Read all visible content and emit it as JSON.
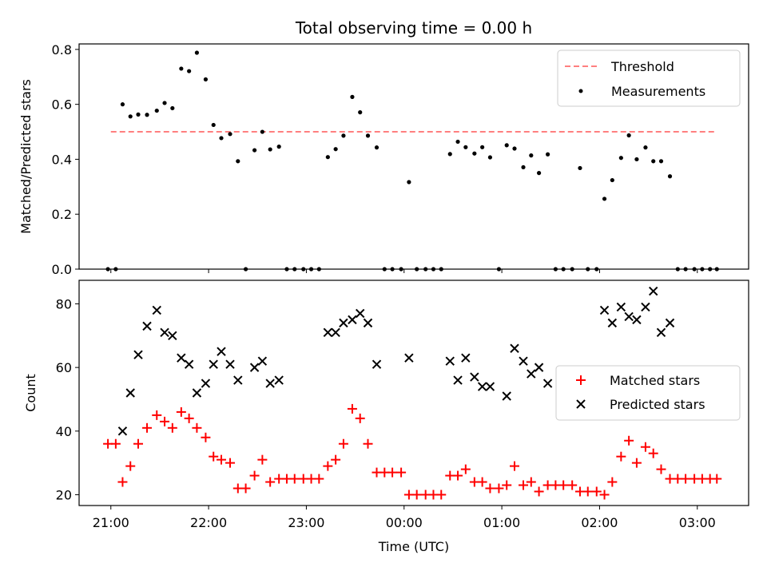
{
  "chart_data": [
    {
      "type": "scatter",
      "title": "Total observing time = 0.00 h",
      "xlabel": "",
      "ylabel": "Matched/Predicted stars",
      "xlim": [
        20.675,
        27.525
      ],
      "ylim": [
        0,
        0.82
      ],
      "yticks": [
        0.0,
        0.2,
        0.4,
        0.6,
        0.8
      ],
      "ytick_labels": [
        "0.0",
        "0.2",
        "0.4",
        "0.6",
        "0.8"
      ],
      "threshold": {
        "name": "Threshold",
        "value": 0.5,
        "x_range": [
          21.0,
          27.2
        ],
        "color": "#ff7f7f"
      },
      "series": [
        {
          "name": "Measurements",
          "color": "#000000",
          "points": [
            [
              20.97,
              0.0
            ],
            [
              21.05,
              0.0
            ],
            [
              21.12,
              0.6
            ],
            [
              21.2,
              0.556
            ],
            [
              21.28,
              0.563
            ],
            [
              21.37,
              0.562
            ],
            [
              21.47,
              0.577
            ],
            [
              21.55,
              0.605
            ],
            [
              21.63,
              0.586
            ],
            [
              21.72,
              0.73
            ],
            [
              21.8,
              0.721
            ],
            [
              21.88,
              0.788
            ],
            [
              21.97,
              0.691
            ],
            [
              22.05,
              0.525
            ],
            [
              22.13,
              0.477
            ],
            [
              22.22,
              0.492
            ],
            [
              22.3,
              0.393
            ],
            [
              22.38,
              0.0
            ],
            [
              22.47,
              0.433
            ],
            [
              22.55,
              0.5
            ],
            [
              22.63,
              0.436
            ],
            [
              22.72,
              0.446
            ],
            [
              22.8,
              0.0
            ],
            [
              22.88,
              0.0
            ],
            [
              22.97,
              0.0
            ],
            [
              23.05,
              0.0
            ],
            [
              23.13,
              0.0
            ],
            [
              23.22,
              0.408
            ],
            [
              23.3,
              0.437
            ],
            [
              23.38,
              0.486
            ],
            [
              23.47,
              0.627
            ],
            [
              23.55,
              0.571
            ],
            [
              23.63,
              0.486
            ],
            [
              23.72,
              0.443
            ],
            [
              23.8,
              0.0
            ],
            [
              23.88,
              0.0
            ],
            [
              23.97,
              0.0
            ],
            [
              24.05,
              0.317
            ],
            [
              24.13,
              0.0
            ],
            [
              24.22,
              0.0
            ],
            [
              24.3,
              0.0
            ],
            [
              24.38,
              0.0
            ],
            [
              24.47,
              0.419
            ],
            [
              24.55,
              0.464
            ],
            [
              24.63,
              0.444
            ],
            [
              24.72,
              0.421
            ],
            [
              24.8,
              0.444
            ],
            [
              24.88,
              0.407
            ],
            [
              24.97,
              0.0
            ],
            [
              25.05,
              0.451
            ],
            [
              25.13,
              0.439
            ],
            [
              25.22,
              0.371
            ],
            [
              25.3,
              0.414
            ],
            [
              25.38,
              0.35
            ],
            [
              25.47,
              0.418
            ],
            [
              25.55,
              0.0
            ],
            [
              25.63,
              0.0
            ],
            [
              25.72,
              0.0
            ],
            [
              25.8,
              0.368
            ],
            [
              25.88,
              0.0
            ],
            [
              25.97,
              0.0
            ],
            [
              26.05,
              0.256
            ],
            [
              26.13,
              0.324
            ],
            [
              26.22,
              0.405
            ],
            [
              26.3,
              0.487
            ],
            [
              26.38,
              0.4
            ],
            [
              26.47,
              0.443
            ],
            [
              26.55,
              0.393
            ],
            [
              26.63,
              0.393
            ],
            [
              26.72,
              0.338
            ],
            [
              26.8,
              0.0
            ],
            [
              26.88,
              0.0
            ],
            [
              26.97,
              0.0
            ],
            [
              27.05,
              0.0
            ],
            [
              27.13,
              0.0
            ],
            [
              27.2,
              0.0
            ]
          ]
        }
      ],
      "legend": {
        "placement": "upper-right",
        "entries": [
          "Threshold",
          "Measurements"
        ]
      }
    },
    {
      "type": "scatter",
      "title": "",
      "xlabel": "Time (UTC)",
      "ylabel": "Count",
      "xlim": [
        20.675,
        27.525
      ],
      "ylim": [
        16.6,
        87.4
      ],
      "xticks": [
        21,
        22,
        23,
        24,
        25,
        26,
        27
      ],
      "xtick_labels": [
        "21:00",
        "22:00",
        "23:00",
        "00:00",
        "01:00",
        "02:00",
        "03:00"
      ],
      "yticks": [
        20,
        40,
        60,
        80
      ],
      "ytick_labels": [
        "20",
        "40",
        "60",
        "80"
      ],
      "series": [
        {
          "name": "Matched stars",
          "color": "#ff0000",
          "marker": "plus",
          "points": [
            [
              20.97,
              36
            ],
            [
              21.05,
              36
            ],
            [
              21.12,
              24
            ],
            [
              21.2,
              29
            ],
            [
              21.28,
              36
            ],
            [
              21.37,
              41
            ],
            [
              21.47,
              45
            ],
            [
              21.55,
              43
            ],
            [
              21.63,
              41
            ],
            [
              21.72,
              46
            ],
            [
              21.8,
              44
            ],
            [
              21.88,
              41
            ],
            [
              21.97,
              38
            ],
            [
              22.05,
              32
            ],
            [
              22.13,
              31
            ],
            [
              22.22,
              30
            ],
            [
              22.3,
              22
            ],
            [
              22.38,
              22
            ],
            [
              22.47,
              26
            ],
            [
              22.55,
              31
            ],
            [
              22.63,
              24
            ],
            [
              22.72,
              25
            ],
            [
              22.8,
              25
            ],
            [
              22.88,
              25
            ],
            [
              22.97,
              25
            ],
            [
              23.05,
              25
            ],
            [
              23.13,
              25
            ],
            [
              23.22,
              29
            ],
            [
              23.3,
              31
            ],
            [
              23.38,
              36
            ],
            [
              23.47,
              47
            ],
            [
              23.55,
              44
            ],
            [
              23.63,
              36
            ],
            [
              23.72,
              27
            ],
            [
              23.8,
              27
            ],
            [
              23.88,
              27
            ],
            [
              23.97,
              27
            ],
            [
              24.05,
              20
            ],
            [
              24.13,
              20
            ],
            [
              24.22,
              20
            ],
            [
              24.3,
              20
            ],
            [
              24.38,
              20
            ],
            [
              24.47,
              26
            ],
            [
              24.55,
              26
            ],
            [
              24.63,
              28
            ],
            [
              24.72,
              24
            ],
            [
              24.8,
              24
            ],
            [
              24.88,
              22
            ],
            [
              24.97,
              22
            ],
            [
              25.05,
              23
            ],
            [
              25.13,
              29
            ],
            [
              25.22,
              23
            ],
            [
              25.3,
              24
            ],
            [
              25.38,
              21
            ],
            [
              25.47,
              23
            ],
            [
              25.55,
              23
            ],
            [
              25.63,
              23
            ],
            [
              25.72,
              23
            ],
            [
              25.8,
              21
            ],
            [
              25.88,
              21
            ],
            [
              25.97,
              21
            ],
            [
              26.05,
              20
            ],
            [
              26.13,
              24
            ],
            [
              26.22,
              32
            ],
            [
              26.3,
              37
            ],
            [
              26.38,
              30
            ],
            [
              26.47,
              35
            ],
            [
              26.55,
              33
            ],
            [
              26.63,
              28
            ],
            [
              26.72,
              25
            ],
            [
              26.8,
              25
            ],
            [
              26.88,
              25
            ],
            [
              26.97,
              25
            ],
            [
              27.05,
              25
            ],
            [
              27.13,
              25
            ],
            [
              27.2,
              25
            ]
          ]
        },
        {
          "name": "Predicted stars",
          "color": "#000000",
          "marker": "x",
          "points": [
            [
              21.12,
              40
            ],
            [
              21.2,
              52
            ],
            [
              21.28,
              64
            ],
            [
              21.37,
              73
            ],
            [
              21.47,
              78
            ],
            [
              21.55,
              71
            ],
            [
              21.63,
              70
            ],
            [
              21.72,
              63
            ],
            [
              21.8,
              61
            ],
            [
              21.88,
              52
            ],
            [
              21.97,
              55
            ],
            [
              22.05,
              61
            ],
            [
              22.13,
              65
            ],
            [
              22.22,
              61
            ],
            [
              22.3,
              56
            ],
            [
              22.47,
              60
            ],
            [
              22.55,
              62
            ],
            [
              22.63,
              55
            ],
            [
              22.72,
              56
            ],
            [
              23.22,
              71
            ],
            [
              23.3,
              71
            ],
            [
              23.38,
              74
            ],
            [
              23.47,
              75
            ],
            [
              23.55,
              77
            ],
            [
              23.63,
              74
            ],
            [
              23.72,
              61
            ],
            [
              24.05,
              63
            ],
            [
              24.47,
              62
            ],
            [
              24.55,
              56
            ],
            [
              24.63,
              63
            ],
            [
              24.72,
              57
            ],
            [
              24.8,
              54
            ],
            [
              24.88,
              54
            ],
            [
              25.05,
              51
            ],
            [
              25.13,
              66
            ],
            [
              25.22,
              62
            ],
            [
              25.3,
              58
            ],
            [
              25.38,
              60
            ],
            [
              25.47,
              55
            ],
            [
              26.05,
              78
            ],
            [
              26.13,
              74
            ],
            [
              26.22,
              79
            ],
            [
              26.3,
              76
            ],
            [
              26.38,
              75
            ],
            [
              26.47,
              79
            ],
            [
              26.55,
              84
            ],
            [
              26.63,
              71
            ],
            [
              26.72,
              74
            ]
          ]
        }
      ],
      "legend": {
        "placement": "center-right",
        "entries": [
          "Matched stars",
          "Predicted stars"
        ]
      }
    }
  ]
}
